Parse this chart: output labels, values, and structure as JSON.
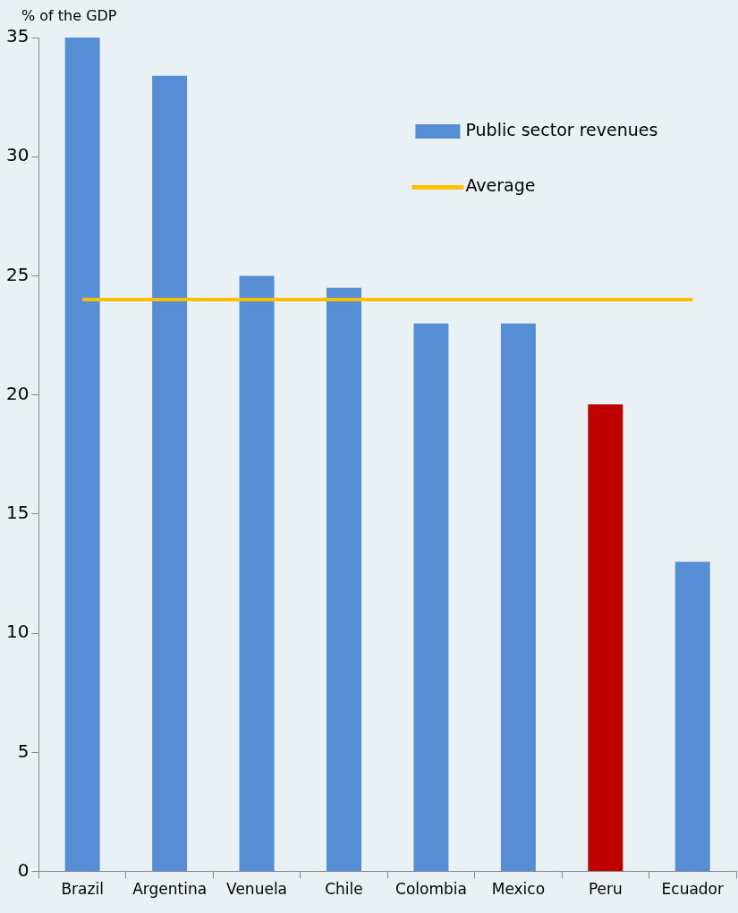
{
  "chart_data": {
    "type": "bar",
    "ylabel": "% of the GDP",
    "categories": [
      "Brazil",
      "Argentina",
      "Venuela",
      "Chile",
      "Colombia",
      "Mexico",
      "Peru",
      "Ecuador"
    ],
    "series": [
      {
        "name": "Public sector revenues",
        "color": "#558ed5",
        "colors": [
          "#558ed5",
          "#558ed5",
          "#558ed5",
          "#558ed5",
          "#558ed5",
          "#558ed5",
          "#c00000",
          "#558ed5"
        ],
        "values": [
          35,
          33.4,
          25,
          24.5,
          23,
          23,
          19.6,
          13
        ]
      },
      {
        "name": "Average",
        "type": "line",
        "color": "#ffc000",
        "values": [
          24,
          24,
          24,
          24,
          24,
          24,
          24,
          24
        ]
      }
    ],
    "ylim": [
      0,
      35
    ],
    "yticks": [
      0,
      5,
      10,
      15,
      20,
      25,
      30,
      35
    ],
    "grid": false,
    "legend": "top right",
    "marker": "none"
  }
}
